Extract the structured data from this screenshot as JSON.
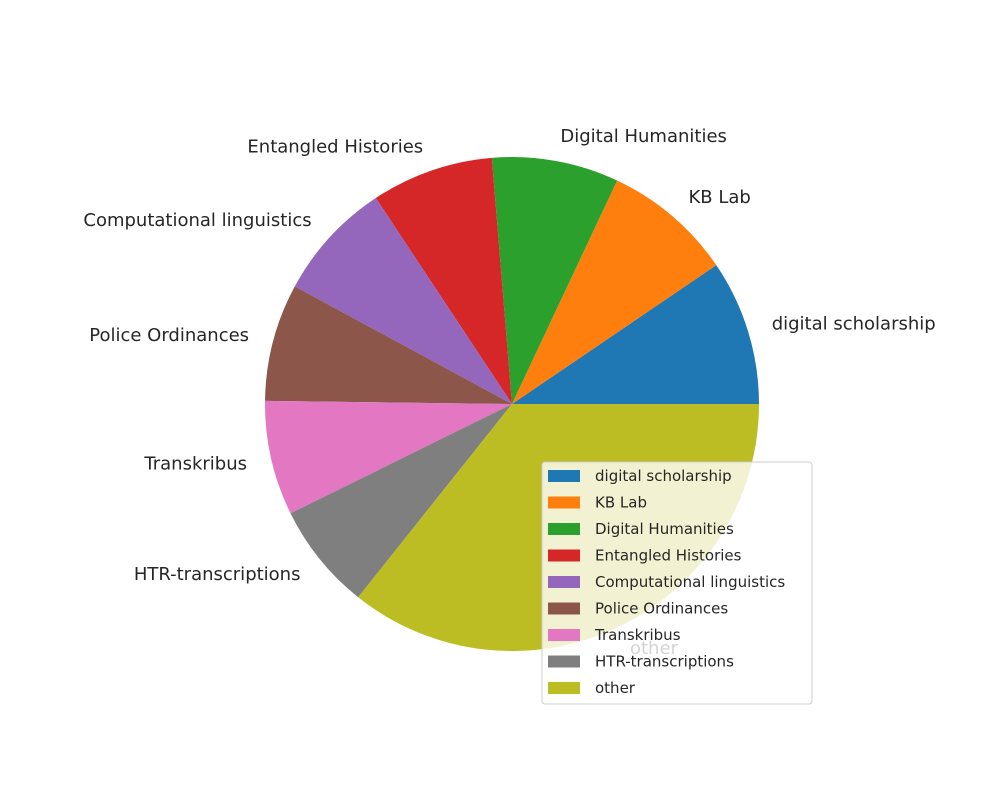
{
  "chart_data": {
    "type": "pie",
    "categories": [
      "digital scholarship",
      "KB Lab",
      "Digital Humanities",
      "Entangled Histories",
      "Computational linguistics",
      "Police Ordinances",
      "Transkribus",
      "HTR-transcriptions",
      "other"
    ],
    "values": [
      9.5,
      8.5,
      8.3,
      8.0,
      7.8,
      7.7,
      7.5,
      7.0,
      35.7
    ],
    "colors": [
      "#1f77b4",
      "#ff7f0e",
      "#2ca02c",
      "#d62728",
      "#9467bd",
      "#8c564b",
      "#e377c2",
      "#7f7f7f",
      "#bcbd22"
    ],
    "start_angle": 0,
    "direction": "counterclockwise",
    "legend": {
      "position": "lower-right",
      "entries": [
        "digital scholarship",
        "KB Lab",
        "Digital Humanities",
        "Entangled Histories",
        "Computational linguistics",
        "Police Ordinances",
        "Transkribus",
        "HTR-transcriptions",
        "other"
      ]
    }
  }
}
